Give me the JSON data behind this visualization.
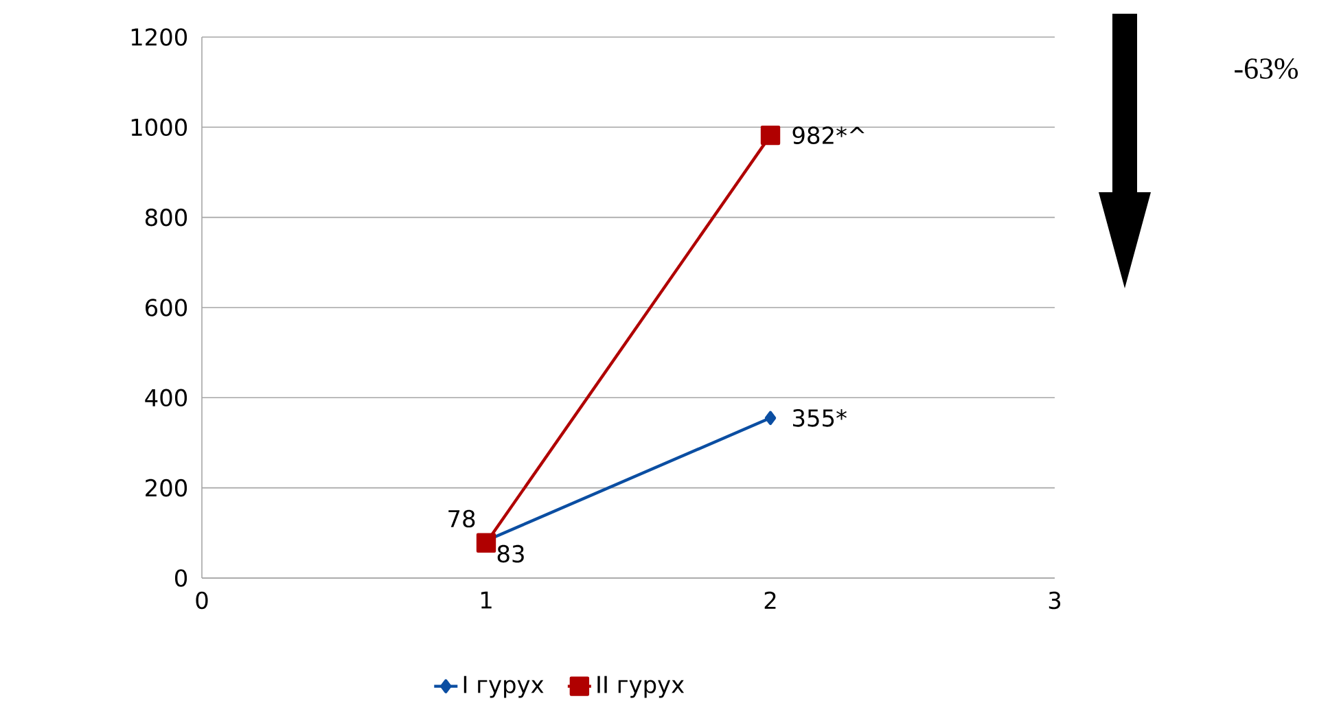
{
  "chart_data": {
    "type": "line",
    "x": [
      1,
      2
    ],
    "xlim": [
      0,
      3
    ],
    "xticks": [
      0,
      1,
      2,
      3
    ],
    "ylim": [
      0,
      1200
    ],
    "yticks": [
      0,
      200,
      400,
      600,
      800,
      1000,
      1200
    ],
    "grid": "y",
    "legend": "bottom",
    "line_style": "solid",
    "series": [
      {
        "name": "I гурух",
        "color": "#0b4ea2",
        "marker": "diamond",
        "values": [
          83,
          355
        ],
        "value_labels": [
          "83",
          "355*"
        ]
      },
      {
        "name": "II гурух",
        "color": "#b00000",
        "marker": "square",
        "values": [
          78,
          982
        ],
        "value_labels": [
          "78",
          "982*^"
        ]
      }
    ],
    "annotations": [
      "-63%"
    ]
  }
}
